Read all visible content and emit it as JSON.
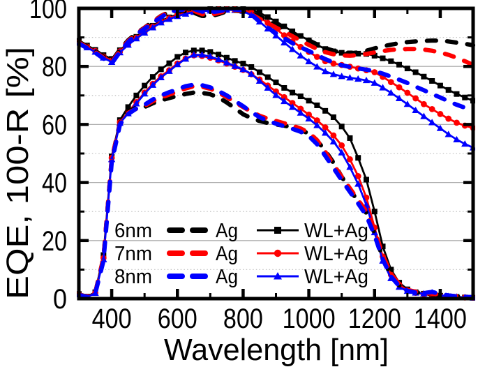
{
  "chart_data": {
    "type": "line",
    "title": "",
    "xlabel": "Wavelength [nm]",
    "ylabel": "EQE, 100-R  [%]",
    "xlim": [
      300,
      1500
    ],
    "ylim": [
      0,
      100
    ],
    "x_ticks": [
      400,
      600,
      800,
      1000,
      1200,
      1400
    ],
    "x_minor_ticks": [
      300,
      500,
      700,
      900,
      1100,
      1300,
      1500
    ],
    "y_ticks": [
      0,
      20,
      40,
      60,
      80,
      100
    ],
    "y_minor_ticks": [
      10,
      30,
      50,
      70,
      90
    ],
    "grid": {
      "solid_horizontal_at": [
        20,
        40,
        60,
        80
      ],
      "dotted_horizontal_at": [
        10,
        30,
        50,
        70,
        90
      ],
      "vertical": false
    },
    "colors": {
      "6nm": "#000000",
      "7nm": "#ff0000",
      "8nm": "#0000ff",
      "grid_solid": "#b0b0b0",
      "grid_dotted": "#c4c4c4",
      "axis": "#000000"
    },
    "legend": {
      "position": "inside bottom-left",
      "rows": [
        {
          "size_label": "6nm",
          "dashed_series_label": "Ag",
          "solid_series_label": "WL+Ag",
          "color": "#000000",
          "marker": "square"
        },
        {
          "size_label": "7nm",
          "dashed_series_label": "Ag",
          "solid_series_label": "WL+Ag",
          "color": "#ff0000",
          "marker": "circle"
        },
        {
          "size_label": "8nm",
          "dashed_series_label": "Ag",
          "solid_series_label": "WL+Ag",
          "color": "#0000ff",
          "marker": "triangle"
        }
      ]
    },
    "x": [
      300,
      325,
      350,
      375,
      400,
      425,
      450,
      475,
      500,
      525,
      550,
      575,
      600,
      625,
      650,
      675,
      700,
      725,
      750,
      775,
      800,
      825,
      850,
      875,
      900,
      925,
      950,
      975,
      1000,
      1025,
      1050,
      1075,
      1100,
      1125,
      1150,
      1175,
      1200,
      1225,
      1250,
      1275,
      1300,
      1325,
      1350,
      1375,
      1400,
      1425,
      1450,
      1475,
      1500
    ],
    "series": [
      {
        "id": "100R-Ag-6nm",
        "name": "Ag 6nm (100-R)",
        "color": "#000000",
        "style": "dashed",
        "marker": "none",
        "values": [
          88.5,
          86.9,
          85.4,
          83.4,
          81.8,
          85.8,
          89.0,
          91.4,
          93.4,
          95.4,
          97.4,
          98.8,
          99.3,
          99.0,
          98.5,
          97.4,
          97.3,
          98.0,
          99.0,
          99.2,
          99.0,
          98.4,
          97.3,
          95.8,
          94.3,
          92.8,
          91.3,
          90.0,
          89.0,
          87.6,
          86.3,
          85.4,
          84.7,
          84.5,
          84.8,
          85.4,
          86.2,
          86.9,
          87.5,
          88.0,
          88.4,
          88.6,
          88.8,
          88.9,
          88.9,
          88.6,
          88.2,
          87.8,
          87.3
        ]
      },
      {
        "id": "100R-Ag-7nm",
        "name": "Ag 7nm (100-R)",
        "color": "#ff0000",
        "style": "dashed",
        "marker": "none",
        "values": [
          88.2,
          86.6,
          85.0,
          83.0,
          81.4,
          85.4,
          88.7,
          91.2,
          93.3,
          95.3,
          97.3,
          99.0,
          99.5,
          99.4,
          99.2,
          98.0,
          97.8,
          98.4,
          99.3,
          99.4,
          99.2,
          98.0,
          96.4,
          94.9,
          93.4,
          91.9,
          90.4,
          88.9,
          87.4,
          86.0,
          84.9,
          84.2,
          83.8,
          83.7,
          83.9,
          84.3,
          84.8,
          85.3,
          85.7,
          85.9,
          86.0,
          86.0,
          85.8,
          85.4,
          84.8,
          84.0,
          83.0,
          81.8,
          80.5
        ]
      },
      {
        "id": "100R-Ag-8nm",
        "name": "Ag 8nm (100-R)",
        "color": "#0000ff",
        "style": "dashed",
        "marker": "none",
        "values": [
          87.9,
          86.3,
          84.7,
          82.7,
          81.0,
          85.0,
          88.4,
          91.0,
          93.0,
          95.0,
          96.9,
          98.8,
          99.4,
          99.6,
          99.8,
          98.9,
          98.7,
          99.0,
          99.5,
          99.6,
          99.4,
          97.9,
          95.4,
          93.4,
          91.4,
          89.7,
          88.0,
          86.6,
          85.3,
          83.9,
          82.5,
          81.4,
          80.4,
          79.8,
          79.3,
          78.9,
          78.4,
          77.5,
          76.5,
          75.4,
          74.3,
          73.0,
          71.8,
          70.5,
          69.3,
          68.0,
          66.8,
          65.8,
          64.8
        ]
      },
      {
        "id": "100R-WLAg-6nm",
        "name": "WL+Ag 6nm (100-R)",
        "color": "#000000",
        "style": "solid",
        "marker": "square",
        "values": [
          88.8,
          87.2,
          85.7,
          83.9,
          82.6,
          85.6,
          88.0,
          90.2,
          92.2,
          94.0,
          95.7,
          96.9,
          97.9,
          98.7,
          99.3,
          99.6,
          99.8,
          99.9,
          100.0,
          100.0,
          99.8,
          99.5,
          98.5,
          97.0,
          95.5,
          93.8,
          92.1,
          90.5,
          89.0,
          87.4,
          86.0,
          85.2,
          84.7,
          84.5,
          84.4,
          84.3,
          83.7,
          82.8,
          81.8,
          80.6,
          79.3,
          78.0,
          76.5,
          75.0,
          73.4,
          71.9,
          70.5,
          69.3,
          68.2
        ]
      },
      {
        "id": "100R-WLAg-7nm",
        "name": "WL+Ag 7nm (100-R)",
        "color": "#ff0000",
        "style": "solid",
        "marker": "circle",
        "values": [
          88.4,
          86.8,
          85.3,
          83.4,
          82.0,
          85.2,
          87.7,
          89.9,
          91.9,
          93.7,
          95.4,
          96.6,
          97.6,
          98.4,
          99.0,
          99.3,
          99.5,
          99.7,
          99.8,
          99.7,
          99.4,
          98.6,
          97.0,
          95.0,
          92.9,
          90.7,
          88.6,
          86.7,
          85.0,
          83.3,
          81.8,
          81.0,
          80.5,
          79.9,
          79.3,
          78.7,
          78.0,
          76.4,
          74.6,
          72.8,
          70.9,
          69.0,
          67.0,
          65.3,
          63.6,
          62.0,
          60.6,
          59.6,
          58.8
        ]
      },
      {
        "id": "100R-WLAg-8nm",
        "name": "WL+Ag 8nm (100-R)",
        "color": "#0000ff",
        "style": "solid",
        "marker": "triangle",
        "values": [
          88.1,
          86.5,
          85.0,
          83.0,
          81.5,
          84.8,
          87.4,
          89.6,
          91.6,
          93.4,
          95.1,
          96.3,
          97.3,
          98.1,
          98.7,
          99.0,
          99.2,
          99.4,
          99.5,
          99.4,
          99.1,
          97.6,
          95.4,
          93.0,
          90.6,
          88.2,
          85.9,
          83.7,
          81.7,
          79.9,
          78.3,
          77.3,
          76.6,
          76.1,
          75.7,
          75.2,
          74.3,
          72.7,
          70.9,
          69.0,
          67.0,
          64.9,
          62.8,
          60.7,
          58.7,
          56.6,
          54.8,
          53.3,
          52.0
        ]
      },
      {
        "id": "EQE-Ag-6nm",
        "name": "Ag 6nm (EQE)",
        "color": "#000000",
        "style": "dashed",
        "marker": "none",
        "values": [
          1.5,
          0.6,
          2.0,
          14.0,
          48.0,
          60.5,
          64.5,
          65.8,
          66.0,
          67.3,
          68.3,
          69.1,
          69.8,
          70.5,
          71.0,
          70.9,
          70.4,
          69.3,
          67.6,
          65.6,
          63.5,
          62.2,
          61.2,
          60.5,
          60.0,
          59.6,
          59.0,
          58.2,
          56.8,
          54.4,
          51.0,
          46.8,
          42.0,
          37.5,
          33.5,
          29.5,
          22.5,
          14.0,
          8.0,
          4.6,
          2.8,
          2.2,
          1.8,
          1.5,
          1.2,
          0.9,
          0.7,
          0.5,
          0.4
        ]
      },
      {
        "id": "EQE-Ag-7nm",
        "name": "Ag 7nm (EQE)",
        "color": "#ff0000",
        "style": "dashed",
        "marker": "none",
        "values": [
          1.4,
          0.6,
          2.0,
          14.0,
          48.0,
          60.3,
          64.0,
          65.4,
          66.4,
          68.0,
          69.3,
          70.3,
          71.3,
          72.4,
          73.2,
          73.0,
          72.3,
          71.0,
          69.4,
          67.7,
          66.0,
          64.4,
          63.0,
          62.0,
          61.2,
          60.4,
          59.6,
          58.6,
          57.2,
          54.6,
          50.6,
          46.2,
          42.0,
          38.0,
          34.0,
          30.0,
          23.5,
          15.0,
          8.6,
          5.0,
          3.0,
          2.4,
          2.0,
          1.7,
          1.4,
          1.0,
          0.8,
          0.6,
          0.4
        ]
      },
      {
        "id": "EQE-Ag-8nm",
        "name": "Ag 8nm (EQE)",
        "color": "#0000ff",
        "style": "dashed",
        "marker": "none",
        "values": [
          1.3,
          0.5,
          1.8,
          13.0,
          47.0,
          60.0,
          63.6,
          65.5,
          66.8,
          68.6,
          70.0,
          71.1,
          72.1,
          73.2,
          73.7,
          73.5,
          72.8,
          71.5,
          70.0,
          68.1,
          66.3,
          64.3,
          62.5,
          61.3,
          60.3,
          59.4,
          58.5,
          57.5,
          56.0,
          53.2,
          49.2,
          45.0,
          40.8,
          36.8,
          32.8,
          28.6,
          21.8,
          13.5,
          7.6,
          4.3,
          2.7,
          2.1,
          1.9,
          2.3,
          1.6,
          1.1,
          0.8,
          0.6,
          0.5
        ]
      },
      {
        "id": "EQE-WLAg-6nm",
        "name": "WL+Ag 6nm (EQE)",
        "color": "#000000",
        "style": "solid",
        "marker": "square",
        "values": [
          1.6,
          0.7,
          2.2,
          15.0,
          49.0,
          61.5,
          66.0,
          70.0,
          73.4,
          76.4,
          79.0,
          81.1,
          83.3,
          84.8,
          85.5,
          85.5,
          85.0,
          84.1,
          83.0,
          81.9,
          81.0,
          79.8,
          78.0,
          76.3,
          74.5,
          72.6,
          71.0,
          69.7,
          68.2,
          66.6,
          64.7,
          62.5,
          59.3,
          55.3,
          48.5,
          41.0,
          30.0,
          18.0,
          10.0,
          5.5,
          3.2,
          2.2,
          1.7,
          1.3,
          1.0,
          0.8,
          0.6,
          0.4,
          0.3
        ]
      },
      {
        "id": "EQE-WLAg-7nm",
        "name": "WL+Ag 7nm (EQE)",
        "color": "#ff0000",
        "style": "solid",
        "marker": "circle",
        "values": [
          1.5,
          0.6,
          2.0,
          14.0,
          48.5,
          60.8,
          64.2,
          67.7,
          71.0,
          74.0,
          76.6,
          78.7,
          81.0,
          82.7,
          83.8,
          83.6,
          83.0,
          82.1,
          81.0,
          79.9,
          78.8,
          77.3,
          75.5,
          73.4,
          71.4,
          69.4,
          67.4,
          65.4,
          63.4,
          61.4,
          59.0,
          56.2,
          52.8,
          48.0,
          42.2,
          34.8,
          24.5,
          14.5,
          8.2,
          4.8,
          2.8,
          2.0,
          1.5,
          1.2,
          0.9,
          0.7,
          0.5,
          0.4,
          0.3
        ]
      },
      {
        "id": "EQE-WLAg-8nm",
        "name": "WL+Ag 8nm (EQE)",
        "color": "#0000ff",
        "style": "solid",
        "marker": "triangle",
        "values": [
          1.4,
          0.5,
          1.9,
          13.5,
          48.0,
          60.5,
          63.8,
          67.2,
          70.6,
          73.6,
          76.2,
          78.4,
          80.7,
          82.6,
          84.0,
          84.0,
          83.4,
          82.4,
          81.3,
          80.1,
          79.0,
          77.4,
          75.0,
          72.6,
          70.1,
          68.0,
          66.0,
          64.0,
          62.0,
          59.7,
          57.1,
          54.1,
          50.3,
          45.3,
          39.5,
          32.3,
          22.8,
          13.0,
          7.0,
          4.0,
          2.6,
          2.0,
          1.7,
          2.1,
          1.2,
          0.8,
          0.6,
          0.4,
          0.3
        ]
      }
    ]
  }
}
